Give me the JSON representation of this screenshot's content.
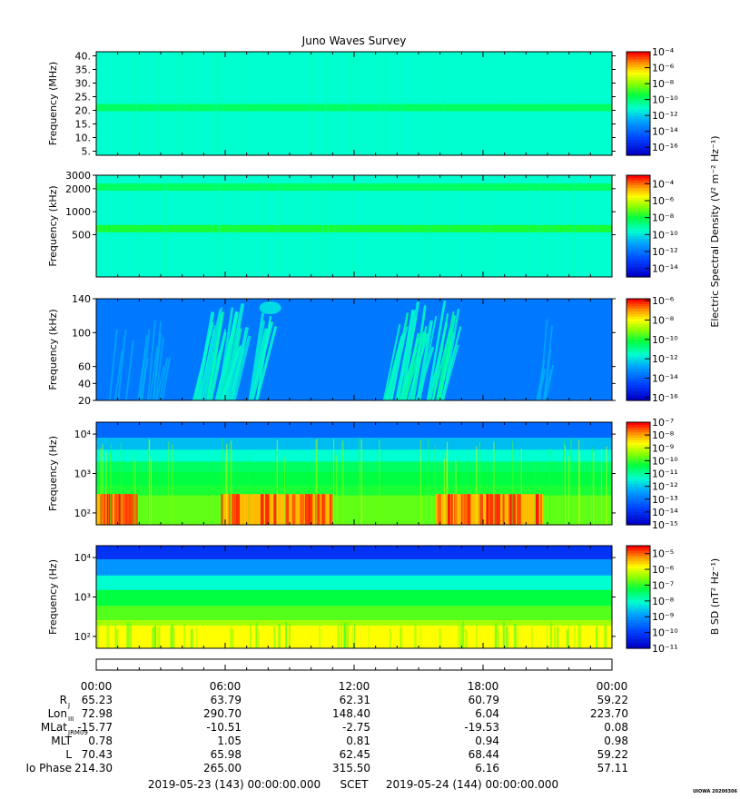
{
  "title": "Juno Waves Survey",
  "watermark": "UIOWA 20200306",
  "chart_data": [
    {
      "type": "heatmap",
      "ylabel": "Frequency (MHz)",
      "ylim": [
        3.5,
        41.5
      ],
      "yticks": [
        "40.",
        "35.",
        "30.",
        "25.",
        "20.",
        "15.",
        "10.",
        "5."
      ],
      "ytick_values": [
        40,
        35,
        30,
        25,
        20,
        15,
        10,
        5
      ],
      "colorbar": {
        "labels": [
          "10⁻⁴",
          "10⁻⁶",
          "10⁻⁸",
          "10⁻¹⁰",
          "10⁻¹²",
          "10⁻¹⁴",
          "10⁻¹⁶"
        ],
        "exponents": [
          -4,
          -6,
          -8,
          -10,
          -12,
          -14,
          -16
        ],
        "range": [
          -17,
          -4
        ]
      },
      "features": [
        {
          "name": "background",
          "level": 0.45
        },
        {
          "name": "band",
          "freq": 21,
          "level": 0.55
        }
      ]
    },
    {
      "type": "heatmap",
      "ylabel": "Frequency (kHz)",
      "ylim": [
        140,
        3000
      ],
      "yscale": "log",
      "yticks": [
        "3000",
        "2000",
        "1000",
        "500"
      ],
      "ytick_values": [
        3000,
        2000,
        1000,
        500
      ],
      "colorbar": {
        "labels": [
          "10⁻⁴",
          "10⁻⁶",
          "10⁻⁸",
          "10⁻¹⁰",
          "10⁻¹²",
          "10⁻¹⁴"
        ],
        "exponents": [
          -4,
          -6,
          -8,
          -10,
          -12,
          -14
        ],
        "range": [
          -15,
          -3
        ]
      },
      "features": [
        {
          "name": "background",
          "level": 0.45
        },
        {
          "name": "band",
          "freq": 2100,
          "level": 0.55
        },
        {
          "name": "band",
          "freq": 600,
          "level": 0.6
        }
      ]
    },
    {
      "type": "heatmap",
      "ylabel": "Frequency (kHz)",
      "ylim": [
        20,
        140
      ],
      "yticks": [
        "140",
        "100",
        "60",
        "40",
        "20"
      ],
      "ytick_values": [
        140,
        100,
        60,
        40,
        20
      ],
      "colorbar": {
        "labels": [
          "10⁻⁶",
          "10⁻⁸",
          "10⁻¹⁰",
          "10⁻¹²",
          "10⁻¹⁴",
          "10⁻¹⁶"
        ],
        "exponents": [
          -6,
          -8,
          -10,
          -12,
          -14,
          -16
        ],
        "range": [
          -16.3,
          -5.8
        ]
      },
      "features": [
        {
          "name": "background",
          "level": 0.25
        },
        {
          "name": "emission",
          "t_hours": [
            4.5,
            7.5
          ],
          "level": 0.4
        },
        {
          "name": "emission",
          "t_hours": [
            13.3,
            16.3
          ],
          "level": 0.42
        }
      ]
    },
    {
      "type": "heatmap",
      "ylabel": "Frequency (Hz)",
      "ylim": [
        50,
        20000
      ],
      "yscale": "log",
      "yticks": [
        "10⁴",
        "10³",
        "10²"
      ],
      "ytick_values": [
        10000,
        1000,
        100
      ],
      "colorbar": {
        "labels": [
          "10⁻⁷",
          "10⁻⁸",
          "10⁻⁹",
          "10⁻¹⁰",
          "10⁻¹¹",
          "10⁻¹²",
          "10⁻¹³",
          "10⁻¹⁴",
          "10⁻¹⁵"
        ],
        "exponents": [
          -7,
          -8,
          -9,
          -10,
          -11,
          -12,
          -13,
          -14,
          -15
        ],
        "range": [
          -15,
          -7
        ]
      },
      "features": [
        {
          "name": "intense",
          "t_hours": [
            0,
            1.8
          ]
        },
        {
          "name": "intense",
          "t_hours": [
            5.8,
            11
          ]
        },
        {
          "name": "intense",
          "t_hours": [
            15.8,
            20.8
          ]
        }
      ]
    },
    {
      "type": "heatmap",
      "ylabel": "Frequency (Hz)",
      "ylim": [
        50,
        20000
      ],
      "yscale": "log",
      "yticks": [
        "10⁴",
        "10³",
        "10²"
      ],
      "ytick_values": [
        10000,
        1000,
        100
      ],
      "colorbar": {
        "label": "B SD (nT² Hz⁻¹)",
        "labels": [
          "10⁻⁵",
          "10⁻⁶",
          "10⁻⁷",
          "10⁻⁸",
          "10⁻⁹",
          "10⁻¹⁰",
          "10⁻¹¹"
        ],
        "exponents": [
          -5,
          -6,
          -7,
          -8,
          -9,
          -10,
          -11
        ],
        "range": [
          -11,
          -4.5
        ]
      }
    }
  ],
  "shared_colorbar_label": "Electric Spectral Density (V² m⁻² Hz⁻¹)",
  "time_axis": {
    "tick_labels": [
      "00:00",
      "06:00",
      "12:00",
      "18:00",
      "00:00"
    ],
    "hours": [
      0,
      6,
      12,
      18,
      24
    ],
    "range_hours": [
      0,
      24
    ]
  },
  "ephemeris": {
    "rows": [
      {
        "label": "R",
        "sub": "J",
        "values": [
          "65.23",
          "63.79",
          "62.31",
          "60.79",
          "59.22"
        ]
      },
      {
        "label": "Lon",
        "sub": "III",
        "values": [
          "72.98",
          "290.70",
          "148.40",
          "6.04",
          "223.70"
        ]
      },
      {
        "label": "MLat",
        "sub": "JRM09",
        "values": [
          "-15.77",
          "-10.51",
          "-2.75",
          "-19.53",
          "0.08"
        ]
      },
      {
        "label": "MLT",
        "sub": "",
        "values": [
          "0.78",
          "1.05",
          "0.81",
          "0.94",
          "0.98"
        ]
      },
      {
        "label": "L",
        "sub": "",
        "values": [
          "70.43",
          "65.98",
          "62.45",
          "68.44",
          "59.22"
        ]
      },
      {
        "label": "Io Phase",
        "sub": "",
        "values": [
          "214.30",
          "265.00",
          "315.50",
          "6.16",
          "57.11"
        ]
      }
    ]
  },
  "footer": {
    "start": "2019-05-23 (143) 00:00:00.000",
    "scet": "SCET",
    "end": "2019-05-24 (144) 00:00:00.000"
  }
}
